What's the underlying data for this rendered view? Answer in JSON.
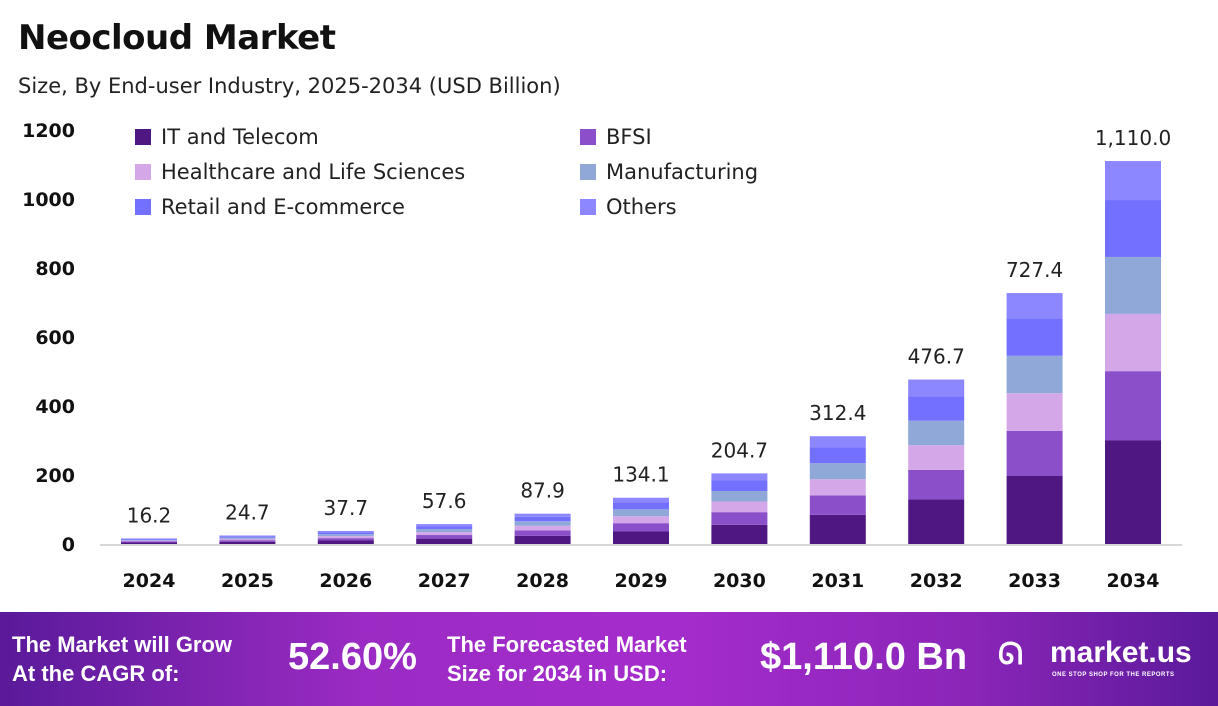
{
  "title": "Neocloud Market",
  "subtitle": "Size, By End-user Industry, 2025-2034 (USD Billion)",
  "chart_data": {
    "type": "bar",
    "stacked": true,
    "categories": [
      "2024",
      "2025",
      "2026",
      "2027",
      "2028",
      "2029",
      "2030",
      "2031",
      "2032",
      "2033",
      "2034"
    ],
    "totals": [
      "16.2",
      "24.7",
      "37.7",
      "57.6",
      "87.9",
      "134.1",
      "204.7",
      "312.4",
      "476.7",
      "727.4",
      "1,110.0"
    ],
    "ylim": [
      0,
      1200
    ],
    "yticks": [
      "0",
      "200",
      "400",
      "600",
      "800",
      "1000",
      "1200"
    ],
    "grid": false,
    "legend_position": "top-left",
    "series": [
      {
        "name": "IT and Telecom",
        "color": "#4E1782",
        "values": [
          4.4,
          6.7,
          10.2,
          15.6,
          23.8,
          36.3,
          55.5,
          84.7,
          129.2,
          197.1,
          301
        ]
      },
      {
        "name": "BFSI",
        "color": "#8B4FC9",
        "values": [
          2.9,
          4.4,
          6.8,
          10.4,
          15.8,
          24.1,
          36.8,
          56.2,
          85.8,
          130.9,
          200
        ]
      },
      {
        "name": "Healthcare and Life Sciences",
        "color": "#D4A8E8",
        "values": [
          2.4,
          3.7,
          5.7,
          8.6,
          13.2,
          20.1,
          30.7,
          46.9,
          71.5,
          109.1,
          166
        ]
      },
      {
        "name": "Manufacturing",
        "color": "#8FA8D8",
        "values": [
          2.4,
          3.7,
          5.6,
          8.6,
          13.1,
          20.0,
          30.5,
          46.5,
          71.0,
          108.4,
          165
        ]
      },
      {
        "name": "Retail and E-commerce",
        "color": "#7470FF",
        "values": [
          2.4,
          3.7,
          5.6,
          8.6,
          13.1,
          20.0,
          30.5,
          46.5,
          71.0,
          108.4,
          165
        ]
      },
      {
        "name": "Others",
        "color": "#8C87FF",
        "values": [
          1.7,
          2.5,
          3.8,
          5.8,
          8.9,
          13.6,
          20.7,
          31.6,
          48.2,
          73.5,
          113
        ]
      }
    ]
  },
  "footer": {
    "cagr_label_1": "The Market will Grow",
    "cagr_label_2": "At the CAGR of:",
    "cagr_value": "52.60%",
    "forecast_label_1": "The Forecasted Market",
    "forecast_label_2": "Size for 2034 in USD:",
    "forecast_value": "$1,110.0 Bn",
    "brand": "market.us",
    "brand_tagline": "ONE STOP SHOP FOR THE REPORTS"
  }
}
